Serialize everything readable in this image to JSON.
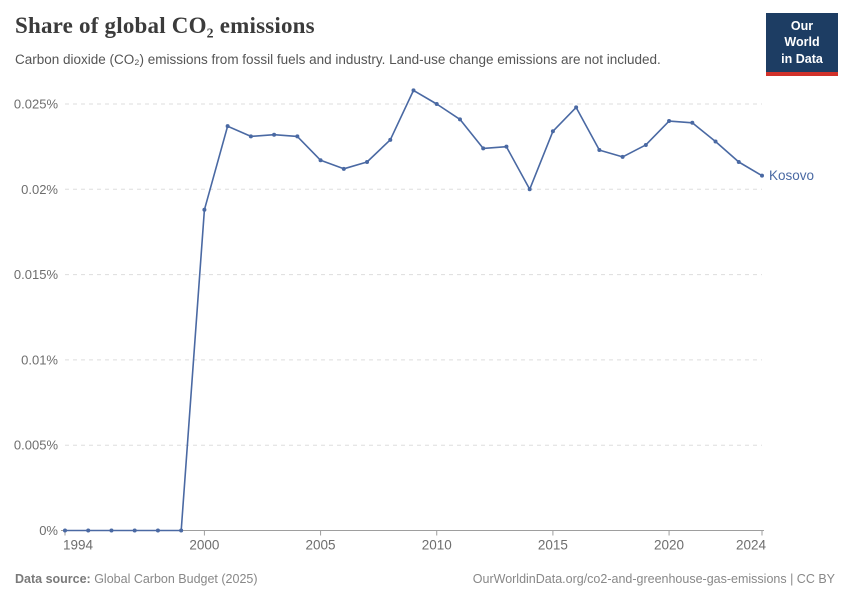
{
  "header": {
    "title": "Share of global CO₂ emissions",
    "subtitle": "Carbon dioxide (CO₂) emissions from fossil fuels and industry. Land-use change emissions are not included.",
    "logo": {
      "line1": "Our World",
      "line2": "in Data"
    }
  },
  "colors": {
    "line": "#4a69a3",
    "grid": "#dddddd",
    "axis": "#9e9e9e",
    "tick_text": "#6e6e6e",
    "logo_bg": "#1d3d63",
    "logo_stripe": "#d1312a"
  },
  "chart_data": {
    "type": "line",
    "title": "Share of global CO₂ emissions",
    "series": [
      {
        "name": "Kosovo",
        "x": [
          1994,
          1995,
          1996,
          1997,
          1998,
          1999,
          2000,
          2001,
          2002,
          2003,
          2004,
          2005,
          2006,
          2007,
          2008,
          2009,
          2010,
          2011,
          2012,
          2013,
          2014,
          2015,
          2016,
          2017,
          2018,
          2019,
          2020,
          2021,
          2022,
          2023,
          2024
        ],
        "values": [
          0,
          0,
          0,
          0,
          0,
          0,
          0.0188,
          0.0237,
          0.0231,
          0.0232,
          0.0231,
          0.0217,
          0.0212,
          0.0216,
          0.0229,
          0.0258,
          0.025,
          0.0241,
          0.0224,
          0.0225,
          0.02,
          0.0234,
          0.0248,
          0.0223,
          0.0219,
          0.0226,
          0.024,
          0.0239,
          0.0228,
          0.0216,
          0.0208
        ]
      }
    ],
    "unit": "%",
    "xlabel": "",
    "ylabel": "",
    "xlim": [
      1994,
      2024
    ],
    "ylim": [
      0,
      0.026
    ],
    "xticks": [
      1994,
      2000,
      2005,
      2010,
      2015,
      2020,
      2024
    ],
    "yticks": [
      0,
      0.005,
      0.01,
      0.015,
      0.02,
      0.025
    ],
    "ytick_labels": [
      "0%",
      "0.005%",
      "0.01%",
      "0.015%",
      "0.02%",
      "0.025%"
    ],
    "grid": "horizontal-dashed",
    "legend_position": "end-of-line-label",
    "end_label": "Kosovo"
  },
  "footer": {
    "source_label": "Data source:",
    "source_value": " Global Carbon Budget (2025)",
    "attribution": "OurWorldinData.org/co2-and-greenhouse-gas-emissions | CC BY"
  }
}
